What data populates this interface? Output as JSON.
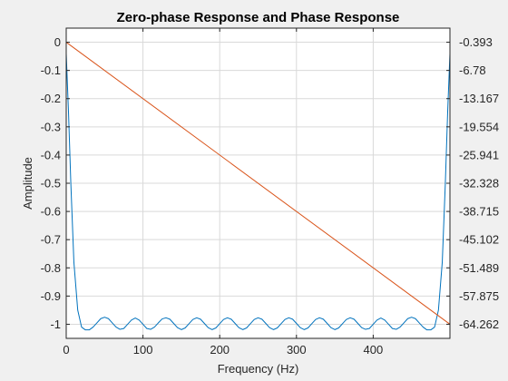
{
  "chart_data": {
    "type": "line",
    "title": "Zero-phase Response and Phase Response",
    "xlabel": "Frequency (Hz)",
    "ylabel": "Amplitude",
    "xlim": [
      0,
      500
    ],
    "ylim_left": [
      -1.05,
      0.05
    ],
    "ylim_right": [
      -67.456,
      2.8
    ],
    "x_ticks": [
      "0",
      "100",
      "200",
      "300",
      "400"
    ],
    "x_tick_values": [
      0,
      100,
      200,
      300,
      400
    ],
    "y_ticks_left": [
      "0",
      "-0.1",
      "-0.2",
      "-0.3",
      "-0.4",
      "-0.5",
      "-0.6",
      "-0.7",
      "-0.8",
      "-0.9",
      "-1"
    ],
    "y_tick_values_left": [
      0,
      -0.1,
      -0.2,
      -0.3,
      -0.4,
      -0.5,
      -0.6,
      -0.7,
      -0.8,
      -0.9,
      -1
    ],
    "y_ticks_right": [
      "-0.393",
      "-6.78",
      "-13.167",
      "-19.554",
      "-25.941",
      "-32.328",
      "-38.715",
      "-45.102",
      "-51.489",
      "-57.875",
      "-64.262"
    ],
    "y_tick_values_right": [
      -0.393,
      -6.78,
      -13.167,
      -19.554,
      -25.941,
      -32.328,
      -38.715,
      -45.102,
      -51.489,
      -57.875,
      -64.262
    ],
    "grid": true,
    "colors": {
      "zero_phase": "#0072bd",
      "phase": "#d95319"
    },
    "series": [
      {
        "axis": "left",
        "x": [
          0,
          3,
          6,
          10,
          15,
          20,
          25,
          30,
          35,
          40,
          45,
          50,
          55,
          60,
          65,
          70,
          75,
          80,
          85,
          90,
          95,
          100,
          105,
          110,
          115,
          120,
          125,
          130,
          135,
          140,
          145,
          150,
          155,
          160,
          165,
          170,
          175,
          180,
          185,
          190,
          195,
          200,
          205,
          210,
          215,
          220,
          225,
          230,
          235,
          240,
          245,
          250,
          255,
          260,
          265,
          270,
          275,
          280,
          285,
          290,
          295,
          300,
          305,
          310,
          315,
          320,
          325,
          330,
          335,
          340,
          345,
          350,
          355,
          360,
          365,
          370,
          375,
          380,
          385,
          390,
          395,
          400,
          405,
          410,
          415,
          420,
          425,
          430,
          435,
          440,
          445,
          450,
          455,
          460,
          465,
          470,
          475,
          480,
          485,
          490,
          494,
          497,
          500
        ],
        "y": [
          -0.04,
          -0.25,
          -0.5,
          -0.78,
          -0.95,
          -1.01,
          -1.02,
          -1.02,
          -1.01,
          -0.995,
          -0.98,
          -0.975,
          -0.98,
          -0.995,
          -1.01,
          -1.018,
          -1.015,
          -1.0,
          -0.985,
          -0.978,
          -0.985,
          -1.0,
          -1.015,
          -1.018,
          -1.01,
          -0.995,
          -0.981,
          -0.977,
          -0.982,
          -0.997,
          -1.012,
          -1.019,
          -1.013,
          -0.998,
          -0.983,
          -0.977,
          -0.982,
          -0.997,
          -1.012,
          -1.019,
          -1.013,
          -0.998,
          -0.983,
          -0.977,
          -0.982,
          -0.997,
          -1.012,
          -1.019,
          -1.013,
          -0.998,
          -0.983,
          -0.977,
          -0.982,
          -0.997,
          -1.012,
          -1.019,
          -1.013,
          -0.998,
          -0.983,
          -0.977,
          -0.982,
          -0.997,
          -1.012,
          -1.019,
          -1.013,
          -0.998,
          -0.983,
          -0.977,
          -0.982,
          -0.997,
          -1.012,
          -1.019,
          -1.013,
          -0.998,
          -0.983,
          -0.977,
          -0.982,
          -0.997,
          -1.012,
          -1.018,
          -1.015,
          -1.0,
          -0.985,
          -0.978,
          -0.985,
          -1.0,
          -1.015,
          -1.018,
          -1.01,
          -0.995,
          -0.98,
          -0.975,
          -0.98,
          -0.995,
          -1.01,
          -1.02,
          -1.02,
          -1.01,
          -0.95,
          -0.78,
          -0.5,
          -0.25,
          -0.04
        ]
      },
      {
        "axis": "right",
        "x": [
          0,
          500
        ],
        "y": [
          -0.393,
          -64.262
        ]
      }
    ]
  }
}
